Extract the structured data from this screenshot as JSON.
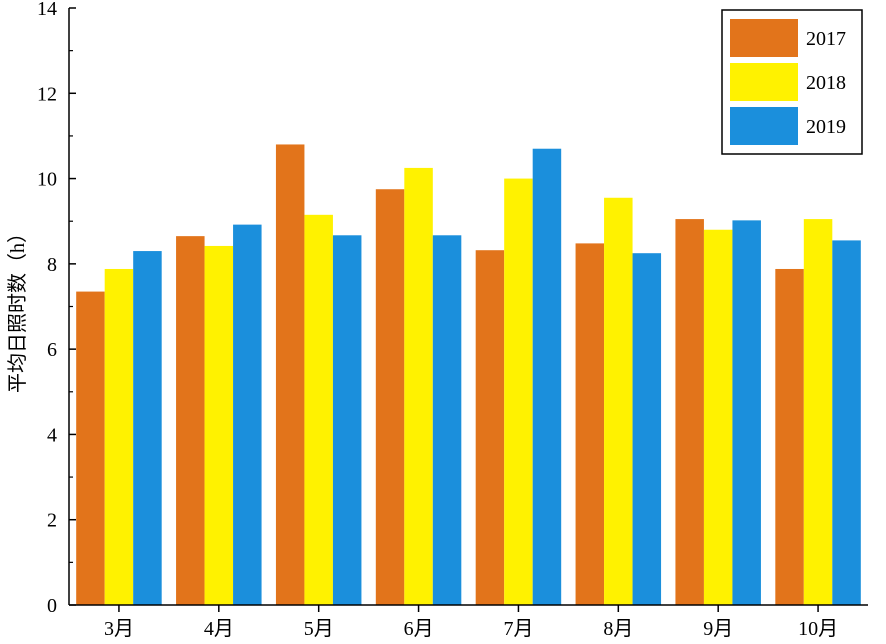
{
  "chart_data": {
    "type": "bar",
    "title": "",
    "xlabel": "",
    "ylabel": "平均日照时数（h）",
    "ylim": [
      0,
      14
    ],
    "yticks": [
      0,
      2,
      4,
      6,
      8,
      10,
      12,
      14
    ],
    "grid": false,
    "legend_position": "top-right",
    "categories": [
      "3月",
      "4月",
      "5月",
      "6月",
      "7月",
      "8月",
      "9月",
      "10月"
    ],
    "series": [
      {
        "name": "2017",
        "color": "#E2741B",
        "values": [
          7.35,
          8.65,
          10.8,
          9.75,
          8.32,
          8.48,
          9.05,
          7.88
        ]
      },
      {
        "name": "2018",
        "color": "#FFF200",
        "values": [
          7.88,
          8.42,
          9.15,
          10.25,
          10.0,
          9.55,
          8.8,
          9.05
        ]
      },
      {
        "name": "2019",
        "color": "#1B8FDC",
        "values": [
          8.3,
          8.92,
          8.67,
          8.67,
          10.7,
          8.25,
          9.02,
          8.55
        ]
      }
    ]
  }
}
